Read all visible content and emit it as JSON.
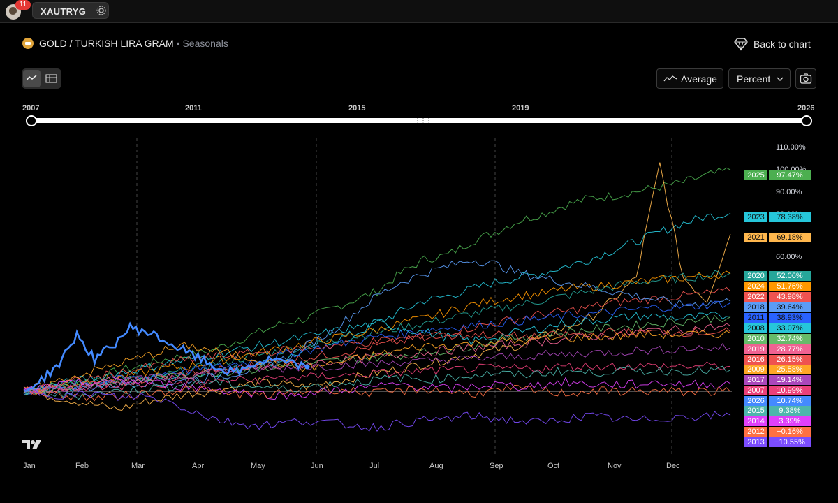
{
  "topbar": {
    "notification_count": "11",
    "symbol": "XAUTRYG"
  },
  "header": {
    "title": "GOLD / TURKISH LIRA GRAM",
    "subtitle": "• Seasonals",
    "back_label": "Back to chart"
  },
  "controls": {
    "average_label": "Average",
    "percent_label": "Percent"
  },
  "range": {
    "years": [
      "2007",
      "2011",
      "2015",
      "2019",
      "2026"
    ],
    "start": "2007",
    "end": "2026"
  },
  "chart_data": {
    "type": "line",
    "x_categories": [
      "Jan",
      "Feb",
      "Mar",
      "Apr",
      "May",
      "Jun",
      "Jul",
      "Aug",
      "Sep",
      "Oct",
      "Nov",
      "Dec"
    ],
    "y_ticks": [
      "110.00%",
      "100.00%",
      "90.00%",
      "80.00%",
      "60.00%"
    ],
    "ylim": [
      -20,
      110
    ],
    "series": [
      {
        "name": "2025",
        "value": "97.47%",
        "color": "#4caf50",
        "final": 97.47,
        "path": [
          0,
          2,
          4,
          5,
          9,
          11,
          14,
          16,
          18,
          22,
          26,
          30,
          32,
          36,
          40,
          44,
          52,
          58,
          60,
          66,
          70,
          75,
          78,
          82,
          85,
          86,
          88,
          90,
          92,
          95,
          97.47
        ]
      },
      {
        "name": "2023",
        "value": "78.38%",
        "color": "#26c6da",
        "final": 78.38,
        "path": [
          0,
          1,
          2,
          3,
          4,
          5,
          6,
          7,
          8,
          10,
          12,
          14,
          18,
          22,
          25,
          30,
          35,
          40,
          42,
          45,
          48,
          50,
          52,
          55,
          58,
          62,
          66,
          70,
          74,
          77,
          78.38
        ]
      },
      {
        "name": "2021",
        "value": "69.18%",
        "color": "#ffb74d",
        "final": 69.18,
        "path": [
          0,
          -2,
          -4,
          -6,
          -8,
          -5,
          -3,
          -1,
          0,
          2,
          4,
          3,
          2,
          4,
          6,
          8,
          10,
          12,
          14,
          16,
          18,
          20,
          24,
          28,
          32,
          40,
          50,
          100,
          50,
          40,
          69.18
        ]
      },
      {
        "name": "2020",
        "value": "52.06%",
        "color": "#26a69a",
        "final": 52.06,
        "path": [
          0,
          1,
          3,
          4,
          6,
          5,
          7,
          9,
          12,
          14,
          16,
          18,
          20,
          22,
          24,
          26,
          28,
          30,
          32,
          34,
          36,
          38,
          40,
          42,
          44,
          46,
          48,
          49,
          50,
          51,
          52.06
        ]
      },
      {
        "name": "2024",
        "value": "51.76%",
        "color": "#ff9800",
        "final": 51.76,
        "path": [
          0,
          2,
          3,
          5,
          6,
          8,
          10,
          11,
          13,
          15,
          17,
          19,
          21,
          23,
          25,
          27,
          30,
          32,
          35,
          38,
          40,
          42,
          43,
          45,
          46,
          47,
          48,
          49,
          50,
          51,
          51.76
        ]
      },
      {
        "name": "2022",
        "value": "43.98%",
        "color": "#ef5350",
        "final": 43.98,
        "path": [
          0,
          1,
          2,
          3,
          4,
          5,
          6,
          8,
          9,
          10,
          12,
          13,
          15,
          16,
          18,
          20,
          22,
          24,
          26,
          28,
          30,
          32,
          34,
          35,
          37,
          39,
          40,
          41,
          42,
          43,
          43.98
        ]
      },
      {
        "name": "2018",
        "value": "39.64%",
        "color": "#5b9cf6",
        "final": 39.64,
        "path": [
          0,
          1,
          0,
          2,
          3,
          4,
          3,
          5,
          6,
          8,
          10,
          14,
          20,
          26,
          34,
          42,
          48,
          52,
          55,
          58,
          56,
          52,
          50,
          48,
          46,
          44,
          42,
          40,
          38,
          39,
          39.64
        ]
      },
      {
        "name": "2011",
        "value": "38.93%",
        "color": "#2962ff",
        "final": 38.93,
        "path": [
          0,
          1,
          2,
          4,
          5,
          6,
          8,
          9,
          10,
          12,
          14,
          16,
          18,
          20,
          22,
          24,
          25,
          27,
          28,
          29,
          30,
          31,
          32,
          33,
          34,
          35,
          36,
          37,
          37,
          38,
          38.93
        ]
      },
      {
        "name": "2008",
        "value": "33.07%",
        "color": "#26c6da",
        "final": 33.07,
        "path": [
          0,
          2,
          4,
          6,
          8,
          10,
          12,
          14,
          16,
          18,
          20,
          22,
          24,
          26,
          28,
          30,
          28,
          26,
          24,
          22,
          24,
          26,
          28,
          30,
          31,
          32,
          33,
          33,
          32,
          33,
          33.07
        ]
      },
      {
        "name": "2010",
        "value": "32.74%",
        "color": "#66bb6a",
        "final": 32.74,
        "path": [
          0,
          1,
          2,
          3,
          4,
          5,
          6,
          7,
          8,
          9,
          10,
          11,
          12,
          13,
          14,
          15,
          16,
          17,
          18,
          20,
          22,
          24,
          25,
          26,
          27,
          28,
          29,
          30,
          31,
          32,
          32.74
        ]
      },
      {
        "name": "2019",
        "value": "28.77%",
        "color": "#f06292",
        "final": 28.77,
        "path": [
          0,
          1,
          2,
          3,
          4,
          5,
          6,
          7,
          8,
          9,
          10,
          11,
          12,
          13,
          14,
          15,
          16,
          17,
          18,
          19,
          20,
          21,
          22,
          23,
          24,
          25,
          26,
          27,
          27,
          28,
          28.77
        ]
      },
      {
        "name": "2016",
        "value": "26.15%",
        "color": "#ef5350",
        "final": 26.15,
        "path": [
          0,
          2,
          4,
          6,
          8,
          10,
          12,
          14,
          15,
          16,
          17,
          18,
          19,
          20,
          21,
          22,
          23,
          24,
          24,
          25,
          25,
          24,
          24,
          25,
          25,
          26,
          26,
          26,
          26,
          26,
          26.15
        ]
      },
      {
        "name": "2009",
        "value": "25.58%",
        "color": "#ffa726",
        "final": 25.58,
        "path": [
          0,
          3,
          6,
          9,
          12,
          15,
          18,
          20,
          18,
          16,
          14,
          12,
          10,
          12,
          14,
          16,
          18,
          20,
          20,
          21,
          22,
          22,
          23,
          23,
          24,
          24,
          25,
          25,
          25,
          25,
          25.58
        ]
      },
      {
        "name": "2017",
        "value": "19.14%",
        "color": "#ab47bc",
        "final": 19.14,
        "path": [
          0,
          1,
          2,
          3,
          4,
          5,
          6,
          7,
          8,
          9,
          10,
          10,
          11,
          11,
          12,
          12,
          13,
          13,
          14,
          14,
          15,
          15,
          16,
          16,
          17,
          17,
          18,
          18,
          19,
          19,
          19.14
        ]
      },
      {
        "name": "2007",
        "value": "10.99%",
        "color": "#ec407a",
        "final": 10.99,
        "path": [
          0,
          1,
          1,
          2,
          2,
          3,
          3,
          4,
          4,
          5,
          5,
          6,
          6,
          7,
          7,
          8,
          8,
          9,
          9,
          10,
          10,
          10,
          10,
          11,
          11,
          11,
          11,
          11,
          11,
          11,
          10.99
        ]
      },
      {
        "name": "2026",
        "value": "10.74%",
        "color": "#448aff",
        "final": 10.74,
        "path": [
          0,
          5,
          12,
          25,
          14,
          20,
          28,
          26,
          22,
          18,
          14,
          10,
          8,
          12,
          14,
          12,
          10.74
        ]
      },
      {
        "name": "2015",
        "value": "9.38%",
        "color": "#4db6ac",
        "final": 9.38,
        "path": [
          0,
          -1,
          -2,
          -1,
          0,
          1,
          2,
          3,
          4,
          3,
          2,
          1,
          2,
          3,
          4,
          5,
          6,
          5,
          6,
          7,
          8,
          7,
          8,
          9,
          8,
          9,
          9,
          9,
          9,
          9,
          9.38
        ]
      },
      {
        "name": "2014",
        "value": "3.39%",
        "color": "#e040fb",
        "final": 3.39,
        "path": [
          0,
          2,
          3,
          4,
          5,
          4,
          3,
          2,
          1,
          0,
          -1,
          -2,
          -1,
          0,
          1,
          2,
          3,
          2,
          1,
          2,
          3,
          2,
          3,
          4,
          3,
          3,
          3,
          4,
          3,
          3,
          3.39
        ]
      },
      {
        "name": "2012",
        "value": "−0.16%",
        "color": "#ff7043",
        "final": -0.16,
        "path": [
          0,
          -1,
          -2,
          -3,
          -2,
          -1,
          0,
          1,
          0,
          -1,
          -2,
          -1,
          0,
          1,
          0,
          -1,
          0,
          1,
          0,
          -1,
          0,
          1,
          0,
          -1,
          0,
          0,
          0,
          0,
          -0.2,
          -0.1,
          -0.16
        ]
      },
      {
        "name": "2013",
        "value": "−10.55%",
        "color": "#7c4dff",
        "final": -10.55,
        "path": [
          0,
          -1,
          -2,
          -1,
          -3,
          -2,
          -4,
          -8,
          -12,
          -14,
          -15,
          -14,
          -13,
          -14,
          -15,
          -16,
          -14,
          -13,
          -12,
          -11,
          -12,
          -13,
          -14,
          -12,
          -11,
          -12,
          -13,
          -12,
          -11,
          -11,
          -10.55
        ]
      }
    ]
  }
}
